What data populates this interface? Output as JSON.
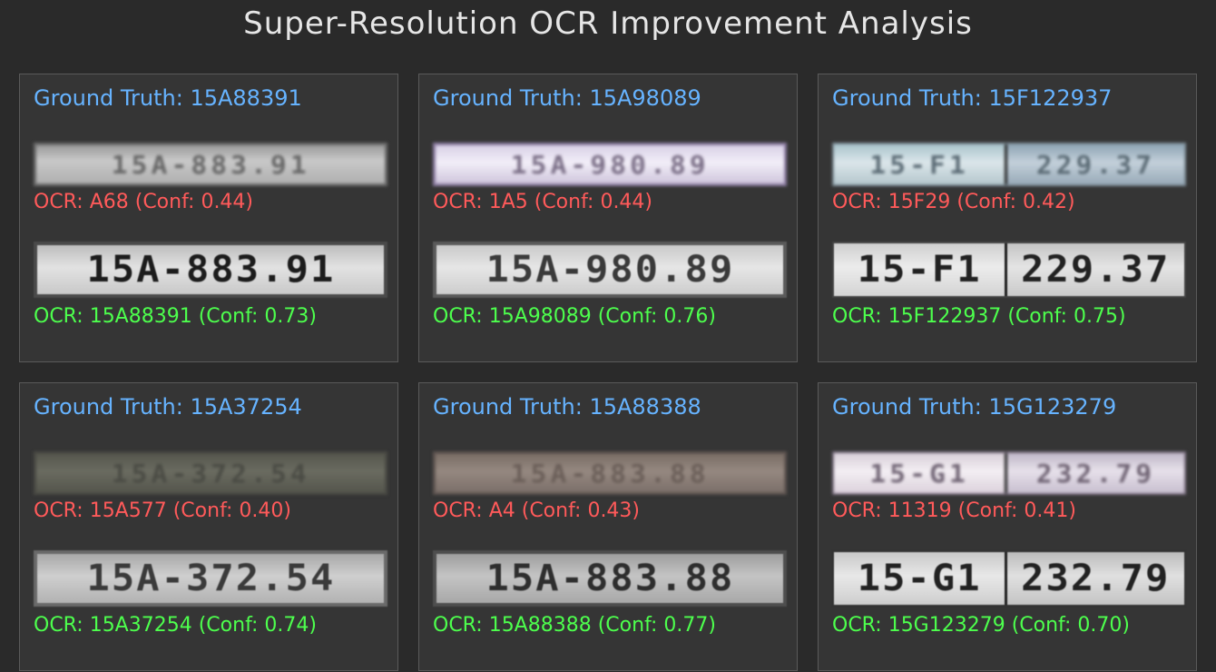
{
  "title": "Super-Resolution OCR Improvement Analysis",
  "cards": [
    {
      "ground_truth": "Ground Truth: 15A88391",
      "lr_plate_text": "15A-883.91",
      "ocr_lr": "OCR: A68 (Conf: 0.44)",
      "sr_plate_text": "15A-883.91",
      "ocr_sr": "OCR: 15A88391 (Conf: 0.73)"
    },
    {
      "ground_truth": "Ground Truth: 15A98089",
      "lr_plate_text": "15A-980.89",
      "ocr_lr": "OCR: 1A5 (Conf: 0.44)",
      "sr_plate_text": "15A-980.89",
      "ocr_sr": "OCR: 15A98089 (Conf: 0.76)"
    },
    {
      "ground_truth": "Ground Truth: 15F122937",
      "lr_plate_left": "15-F1",
      "lr_plate_right": "229.37",
      "ocr_lr": "OCR: 15F29 (Conf: 0.42)",
      "sr_plate_left": "15-F1",
      "sr_plate_right": "229.37",
      "ocr_sr": "OCR: 15F122937 (Conf: 0.75)"
    },
    {
      "ground_truth": "Ground Truth: 15A37254",
      "lr_plate_text": "15A-372.54",
      "ocr_lr": "OCR: 15A577 (Conf: 0.40)",
      "sr_plate_text": "15A-372.54",
      "ocr_sr": "OCR: 15A37254 (Conf: 0.74)"
    },
    {
      "ground_truth": "Ground Truth: 15A88388",
      "lr_plate_text": "15A-883.88",
      "ocr_lr": "OCR: A4 (Conf: 0.43)",
      "sr_plate_text": "15A-883.88",
      "ocr_sr": "OCR: 15A88388 (Conf: 0.77)"
    },
    {
      "ground_truth": "Ground Truth: 15G123279",
      "lr_plate_left": "15-G1",
      "lr_plate_right": "232.79",
      "ocr_lr": "OCR: 11319 (Conf: 0.41)",
      "sr_plate_left": "15-G1",
      "sr_plate_right": "232.79",
      "ocr_sr": "OCR: 15G123279 (Conf: 0.70)"
    }
  ]
}
